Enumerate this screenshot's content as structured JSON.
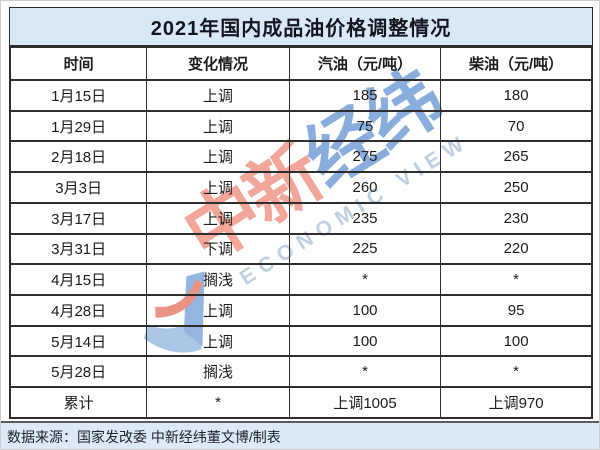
{
  "title": "2021年国内成品油价格调整情况",
  "table": {
    "columns": [
      "时间",
      "变化情况",
      "汽油（元/吨）",
      "柴油（元/吨）"
    ],
    "rows": [
      {
        "date": "1月15日",
        "change": "上调",
        "gas": "185",
        "diesel": "180",
        "type": "up"
      },
      {
        "date": "1月29日",
        "change": "上调",
        "gas": "75",
        "diesel": "70",
        "type": "up"
      },
      {
        "date": "2月18日",
        "change": "上调",
        "gas": "275",
        "diesel": "265",
        "type": "up"
      },
      {
        "date": "3月3日",
        "change": "上调",
        "gas": "260",
        "diesel": "250",
        "type": "up"
      },
      {
        "date": "3月17日",
        "change": "上调",
        "gas": "235",
        "diesel": "230",
        "type": "up"
      },
      {
        "date": "3月31日",
        "change": "下调",
        "gas": "225",
        "diesel": "220",
        "type": "down"
      },
      {
        "date": "4月15日",
        "change": "搁浅",
        "gas": "*",
        "diesel": "*",
        "type": "strand"
      },
      {
        "date": "4月28日",
        "change": "上调",
        "gas": "100",
        "diesel": "95",
        "type": "up"
      },
      {
        "date": "5月14日",
        "change": "上调",
        "gas": "100",
        "diesel": "100",
        "type": "up"
      },
      {
        "date": "5月28日",
        "change": "搁浅",
        "gas": "*",
        "diesel": "*",
        "type": "strand"
      },
      {
        "date": "累计",
        "change": "*",
        "gas": "上调1005",
        "diesel": "上调970",
        "type": "total"
      }
    ]
  },
  "footer": {
    "source_text": "数据来源：国家发改委  中新经纬董文博/制表"
  },
  "watermark": {
    "chars_red": "中新",
    "chars_blue": "经纬",
    "latin": "ECONOMIC VIEW"
  },
  "colors": {
    "header_bg": "#d9e8f6",
    "footer_bg": "#dce9f6",
    "border": "#2e2e2e",
    "text": "#1c1c1c",
    "down_red": "#c9252c",
    "strand_blue": "#7e9cc0",
    "wm_red": "#ee8372",
    "wm_blue": "#5d8fd1",
    "wm_latin": "#a7bdd8"
  },
  "chart_data": {
    "type": "table",
    "title": "2021年国内成品油价格调整情况",
    "columns": [
      "时间",
      "变化情况",
      "汽油（元/吨）",
      "柴油（元/吨）"
    ],
    "rows": [
      [
        "1月15日",
        "上调",
        "185",
        "180"
      ],
      [
        "1月29日",
        "上调",
        "75",
        "70"
      ],
      [
        "2月18日",
        "上调",
        "275",
        "265"
      ],
      [
        "3月3日",
        "上调",
        "260",
        "250"
      ],
      [
        "3月17日",
        "上调",
        "235",
        "230"
      ],
      [
        "3月31日",
        "下调",
        "225",
        "220"
      ],
      [
        "4月15日",
        "搁浅",
        "*",
        "*"
      ],
      [
        "4月28日",
        "上调",
        "100",
        "95"
      ],
      [
        "5月14日",
        "上调",
        "100",
        "100"
      ],
      [
        "5月28日",
        "搁浅",
        "*",
        "*"
      ],
      [
        "累计",
        "*",
        "上调1005",
        "上调970"
      ]
    ],
    "notes": "下调 row values shown in red; 搁浅 rows shown in blue-gray with * values",
    "source": "数据来源：国家发改委  中新经纬董文博/制表"
  }
}
